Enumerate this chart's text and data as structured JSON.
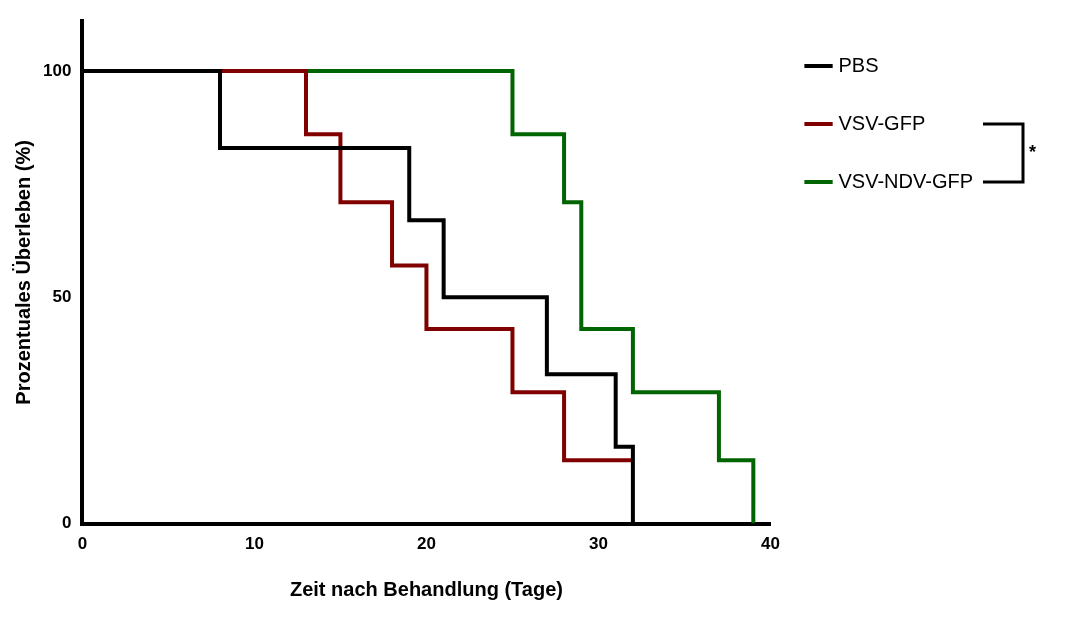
{
  "chart_data": {
    "type": "step",
    "xlabel": "Zeit nach Behandlung (Tage)",
    "ylabel": "Prozentuales Überleben (%)",
    "xlim": [
      0,
      40
    ],
    "xticks": [
      0,
      10,
      20,
      30,
      40
    ],
    "ylim": [
      0,
      111
    ],
    "yticks": [
      0,
      50,
      100
    ],
    "grid": false,
    "legend": "right",
    "marker": "none",
    "annotations": [
      "*"
    ],
    "series": [
      {
        "name": "PBS",
        "color": "#000000",
        "x": [
          0,
          8,
          19,
          21,
          27,
          31,
          32
        ],
        "values": [
          100,
          83,
          67,
          50,
          33,
          17,
          0
        ]
      },
      {
        "name": "VSV-GFP",
        "color": "#800000",
        "x": [
          0,
          13,
          15,
          18,
          20,
          25,
          28,
          32
        ],
        "values": [
          100,
          86,
          71,
          57,
          43,
          29,
          14,
          14
        ]
      },
      {
        "name": "VSV-NDV-GFP",
        "color": "#006400",
        "x": [
          0,
          25,
          28,
          29,
          32,
          37,
          39
        ],
        "values": [
          100,
          86,
          71,
          43,
          29,
          14,
          0
        ]
      }
    ]
  }
}
